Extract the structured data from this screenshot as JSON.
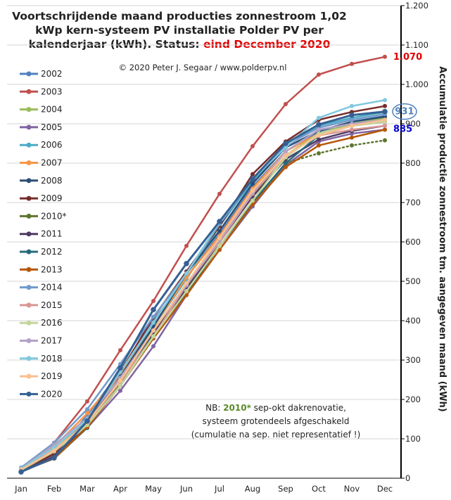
{
  "chart_data": {
    "type": "line",
    "title_lines": [
      "Voortschrijdende maand producties zonnestroom 1,02",
      "kWp kern-systeem PV installatie Polder PV per",
      "kalenderjaar (kWh). Status:"
    ],
    "title_status": "eind December 2020",
    "copyright": "© 2020 Peter J. Segaar / www.polderpv.nl",
    "ylabel": "Accumulatie productie zonnestroom tm. aangegeven maand (kWh)",
    "categories": [
      "Jan",
      "Feb",
      "Mar",
      "Apr",
      "May",
      "Jun",
      "Jul",
      "Aug",
      "Sep",
      "Oct",
      "Nov",
      "Dec"
    ],
    "ylim": [
      0,
      1200
    ],
    "yticks": [
      {
        "v": 0,
        "label": "0"
      },
      {
        "v": 100,
        "label": "100"
      },
      {
        "v": 200,
        "label": "200"
      },
      {
        "v": 300,
        "label": "300"
      },
      {
        "v": 400,
        "label": "400"
      },
      {
        "v": 500,
        "label": "500"
      },
      {
        "v": 600,
        "label": "600"
      },
      {
        "v": 700,
        "label": "700"
      },
      {
        "v": 800,
        "label": "800"
      },
      {
        "v": 900,
        "label": "900"
      },
      {
        "v": 1000,
        "label": "1.000"
      },
      {
        "v": 1100,
        "label": "1.100"
      },
      {
        "v": 1200,
        "label": "1.200"
      }
    ],
    "series": [
      {
        "name": "2002",
        "color": "#4f81bd",
        "values": [
          20,
          58,
          160,
          272,
          400,
          510,
          620,
          740,
          830,
          880,
          905,
          920
        ]
      },
      {
        "name": "2003",
        "color": "#c0504d",
        "values": [
          25,
          90,
          195,
          325,
          450,
          590,
          722,
          843,
          950,
          1025,
          1052,
          1070
        ]
      },
      {
        "name": "2004",
        "color": "#9bbb59",
        "values": [
          22,
          70,
          148,
          258,
          378,
          485,
          600,
          720,
          820,
          875,
          900,
          915
        ]
      },
      {
        "name": "2005",
        "color": "#8064a2",
        "values": [
          18,
          58,
          128,
          222,
          335,
          465,
          580,
          690,
          795,
          855,
          875,
          885
        ]
      },
      {
        "name": "2006",
        "color": "#4bacc6",
        "values": [
          21,
          65,
          150,
          270,
          385,
          505,
          640,
          755,
          845,
          895,
          915,
          930
        ]
      },
      {
        "name": "2007",
        "color": "#f79646",
        "values": [
          23,
          80,
          165,
          262,
          385,
          510,
          615,
          735,
          830,
          875,
          895,
          905
        ]
      },
      {
        "name": "2008",
        "color": "#2c4d75",
        "values": [
          18,
          55,
          140,
          258,
          385,
          520,
          628,
          748,
          840,
          882,
          905,
          918
        ]
      },
      {
        "name": "2009",
        "color": "#772c2a",
        "values": [
          20,
          62,
          148,
          270,
          408,
          525,
          640,
          772,
          855,
          910,
          930,
          945
        ]
      },
      {
        "name": "2010*",
        "color": "#5f7530",
        "values": [
          20,
          55,
          128,
          240,
          370,
          485,
          590,
          700,
          800,
          825,
          845,
          858
        ],
        "dotted_from": 8
      },
      {
        "name": "2011",
        "color": "#4d3b62",
        "values": [
          19,
          55,
          130,
          250,
          370,
          480,
          600,
          715,
          810,
          860,
          882,
          895
        ]
      },
      {
        "name": "2012",
        "color": "#276a7c",
        "values": [
          18,
          50,
          128,
          250,
          362,
          470,
          590,
          700,
          800,
          870,
          895,
          905
        ]
      },
      {
        "name": "2013",
        "color": "#b65708",
        "values": [
          17,
          50,
          130,
          235,
          355,
          465,
          580,
          695,
          790,
          845,
          865,
          885
        ]
      },
      {
        "name": "2014",
        "color": "#729aca",
        "values": [
          27,
          90,
          175,
          290,
          410,
          520,
          645,
          760,
          845,
          890,
          910,
          925
        ]
      },
      {
        "name": "2015",
        "color": "#d99694",
        "values": [
          22,
          72,
          140,
          245,
          360,
          490,
          600,
          722,
          820,
          870,
          885,
          895
        ]
      },
      {
        "name": "2016",
        "color": "#c3d69b",
        "values": [
          21,
          68,
          135,
          235,
          360,
          475,
          590,
          705,
          815,
          875,
          895,
          905
        ]
      },
      {
        "name": "2017",
        "color": "#b3a2c7",
        "values": [
          24,
          85,
          152,
          255,
          375,
          490,
          605,
          725,
          830,
          885,
          900,
          910
        ]
      },
      {
        "name": "2018",
        "color": "#7fc9dd",
        "values": [
          25,
          78,
          148,
          270,
          395,
          520,
          650,
          760,
          840,
          915,
          945,
          960
        ]
      },
      {
        "name": "2019",
        "color": "#fac090",
        "values": [
          22,
          70,
          142,
          248,
          375,
          495,
          610,
          730,
          820,
          870,
          895,
          910
        ]
      },
      {
        "name": "2020",
        "color": "#366092",
        "values": [
          16,
          52,
          145,
          280,
          428,
          545,
          652,
          760,
          850,
          898,
          922,
          931
        ],
        "thick": true
      }
    ],
    "end_labels": [
      {
        "text": "1.070",
        "color": "#e00000",
        "series": "2003"
      },
      {
        "text": "931",
        "color": "#4f81bd",
        "series": "2020",
        "circled": true
      },
      {
        "text": "885",
        "color": "#0000cc",
        "series": "2013"
      }
    ],
    "note_lines": [
      {
        "pre": "NB: ",
        "hi": "2010*",
        "post": " sep-okt dakrenovatie,"
      },
      {
        "pre": "systeem grotendeels afgeschakeld",
        "hi": "",
        "post": ""
      },
      {
        "pre": "(cumulatie na sep. niet representatief !)",
        "hi": "",
        "post": ""
      }
    ],
    "grid": "horizontal",
    "legend": "left"
  }
}
